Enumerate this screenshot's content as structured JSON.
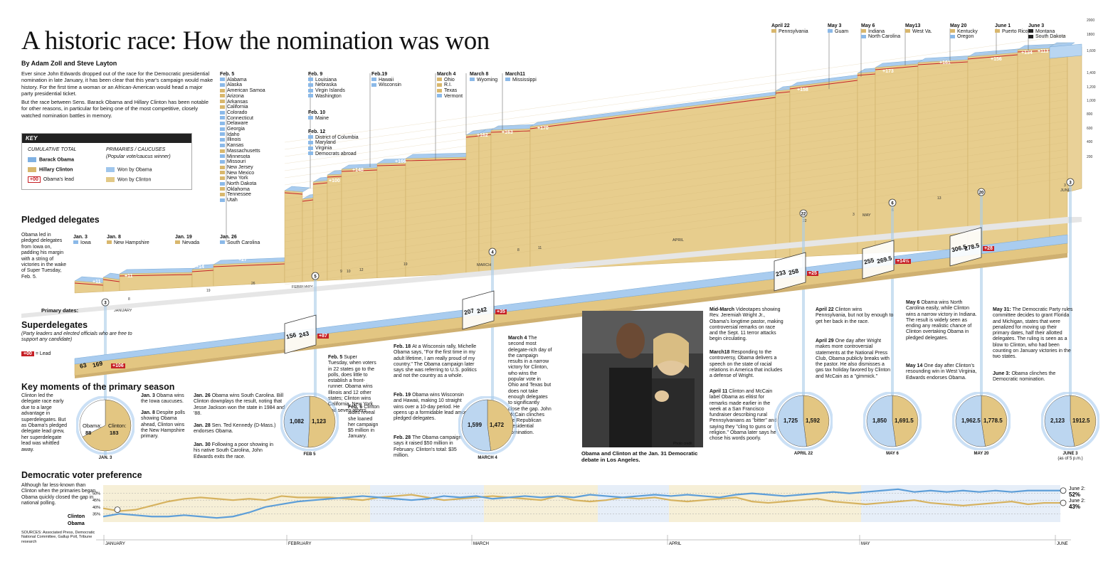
{
  "header": {
    "title": "A historic race: How the nomination was won",
    "byline": "By Adam Zoll and Steve Layton",
    "intro_p1": "Ever since John Edwards dropped out of the race for the Democratic presidential nomination in late January, it has been clear that this year's campaign would make history. For the first time a woman or an African-American would head a major party presidential ticket.",
    "intro_p2": "But the race between Sens. Barack Obama and Hillary Clinton has been notable for other reasons, in particular for being one of the most competitive, closely watched nomination battles in memory."
  },
  "key": {
    "title": "KEY",
    "cum_total": "CUMULATIVE TOTAL",
    "obama": "Barack Obama",
    "clinton": "Hillary Clinton",
    "lead_box": "+00",
    "lead_label": "Obama's lead",
    "primaries": "PRIMARIES / CAUCUSES",
    "popular": "(Popular vote/caucus winner)",
    "won_obama": "Won by Obama",
    "won_clinton": "Won by Clinton"
  },
  "sections": {
    "pledged": "Pledged delegates",
    "super": "Superdelegates",
    "super_sub": "(Party leaders and elected officials who are free to support any candidate)",
    "super_lead_box": "+00",
    "super_lead": "= Lead",
    "primary_dates": "Primary dates:",
    "key_moments": "Key moments of the primary season",
    "voter_pref": "Democratic voter preference",
    "pledged_note": "Obama led in pledged delegates from Iowa on, padding his margin with a string of victories in the wake of Super Tuesday, Feb. 5.",
    "km_note": "Clinton led the delegate race early due to a large advantage in superdelegates. But as Obama's pledged delegate lead grew, her superdelegate lead was whittled away.",
    "vp_note": "Although far less-known than Clinton when the primaries began, Obama quickly closed the gap in national polling.",
    "sources": "SOURCES: Associated Press, Democratic National Committee, Gallup Poll, Tribune research"
  },
  "primary_dates": [
    {
      "date": "Jan. 3",
      "states": [
        {
          "n": "Iowa",
          "w": "o"
        }
      ]
    },
    {
      "date": "Jan. 8",
      "states": [
        {
          "n": "New Hampshire",
          "w": "c"
        }
      ]
    },
    {
      "date": "Jan. 19",
      "states": [
        {
          "n": "Nevada",
          "w": "c"
        }
      ]
    },
    {
      "date": "Jan. 26",
      "states": [
        {
          "n": "South Carolina",
          "w": "o"
        }
      ]
    },
    {
      "date": "Feb. 5",
      "states": [
        {
          "n": "Alabama",
          "w": "o"
        },
        {
          "n": "Alaska",
          "w": "o"
        },
        {
          "n": "American Samoa",
          "w": "c"
        },
        {
          "n": "Arizona",
          "w": "c"
        },
        {
          "n": "Arkansas",
          "w": "c"
        },
        {
          "n": "California",
          "w": "c"
        },
        {
          "n": "Colorado",
          "w": "o"
        },
        {
          "n": "Connecticut",
          "w": "o"
        },
        {
          "n": "Delaware",
          "w": "o"
        },
        {
          "n": "Georgia",
          "w": "o"
        },
        {
          "n": "Idaho",
          "w": "o"
        },
        {
          "n": "Illinois",
          "w": "o"
        },
        {
          "n": "Kansas",
          "w": "o"
        },
        {
          "n": "Massachusetts",
          "w": "c"
        },
        {
          "n": "Minnesota",
          "w": "o"
        },
        {
          "n": "Missouri",
          "w": "o"
        },
        {
          "n": "New Jersey",
          "w": "c"
        },
        {
          "n": "New Mexico",
          "w": "c"
        },
        {
          "n": "New York",
          "w": "c"
        },
        {
          "n": "North Dakota",
          "w": "o"
        },
        {
          "n": "Oklahoma",
          "w": "c"
        },
        {
          "n": "Tennessee",
          "w": "c"
        },
        {
          "n": "Utah",
          "w": "o"
        }
      ]
    },
    {
      "date": "Feb. 9",
      "states": [
        {
          "n": "Louisiana",
          "w": "o"
        },
        {
          "n": "Nebraska",
          "w": "o"
        },
        {
          "n": "Virgin Islands",
          "w": "o"
        },
        {
          "n": "Washington",
          "w": "o"
        }
      ]
    },
    {
      "date": "Feb. 10",
      "states": [
        {
          "n": "Maine",
          "w": "o"
        }
      ]
    },
    {
      "date": "Feb. 12",
      "states": [
        {
          "n": "District of Columbia",
          "w": "o"
        },
        {
          "n": "Maryland",
          "w": "o"
        },
        {
          "n": "Virginia",
          "w": "o"
        },
        {
          "n": "Democrats abroad",
          "w": "o"
        }
      ]
    },
    {
      "date": "Feb.19",
      "states": [
        {
          "n": "Hawaii",
          "w": "o"
        },
        {
          "n": "Wisconsin",
          "w": "o"
        }
      ]
    },
    {
      "date": "March 4",
      "states": [
        {
          "n": "Ohio",
          "w": "c"
        },
        {
          "n": "R.I.",
          "w": "c"
        },
        {
          "n": "Texas",
          "w": "c"
        },
        {
          "n": "Vermont",
          "w": "o"
        }
      ]
    },
    {
      "date": "March 8",
      "states": [
        {
          "n": "Wyoming",
          "w": "o"
        }
      ]
    },
    {
      "date": "March11",
      "states": [
        {
          "n": "Mississippi",
          "w": "o"
        }
      ]
    },
    {
      "date": "April 22",
      "states": [
        {
          "n": "Pennsylvania",
          "w": "c"
        }
      ]
    },
    {
      "date": "May 3",
      "states": [
        {
          "n": "Guam",
          "w": "o"
        }
      ]
    },
    {
      "date": "May 6",
      "states": [
        {
          "n": "Indiana",
          "w": "c"
        },
        {
          "n": "North Carolina",
          "w": "o"
        }
      ]
    },
    {
      "date": "May13",
      "states": [
        {
          "n": "West Va.",
          "w": "c"
        }
      ]
    },
    {
      "date": "May 20",
      "states": [
        {
          "n": "Kentucky",
          "w": "c"
        },
        {
          "n": "Oregon",
          "w": "o"
        }
      ]
    },
    {
      "date": "June 1",
      "states": [
        {
          "n": "Puerto Rico",
          "w": "c"
        }
      ]
    },
    {
      "date": "June 3",
      "states": [
        {
          "n": "Montana",
          "w": "n"
        },
        {
          "n": "South Dakota",
          "w": "n"
        }
      ]
    }
  ],
  "pledged_leads": [
    "+11",
    "+11",
    "+14",
    "+27",
    "+46",
    "+100",
    "+148",
    "+166",
    "+162",
    "+163",
    "+170",
    "+158",
    "+173",
    "+161",
    "+156",
    "+134",
    "+113"
  ],
  "pledged_scale": [
    "2000",
    "1800",
    "1,600",
    "1,400",
    "1,200",
    "1,000",
    "800",
    "600",
    "400",
    "200"
  ],
  "month_labels": [
    "JANUARY",
    "FEBRUARY",
    "MARCH",
    "APRIL",
    "MAY",
    "JUNE"
  ],
  "super_points": [
    {
      "o": "63",
      "c": "169",
      "lead": "+106"
    },
    {
      "o": "156",
      "c": "243",
      "lead": "+87"
    },
    {
      "o": "207",
      "c": "242",
      "lead": "+35"
    },
    {
      "o": "233",
      "c": "258",
      "lead": "+25"
    },
    {
      "o": "255",
      "c": "269.5",
      "lead": "+14½"
    },
    {
      "o": "306.5",
      "c": "278.5",
      "lead": "+28"
    }
  ],
  "pies": [
    {
      "o": 88,
      "c": 183,
      "ol": "Obama:",
      "oval": "88",
      "cl": "Clinton:",
      "cval": "183",
      "date": "JAN. 3"
    },
    {
      "o": 1082,
      "c": 1123,
      "oval": "1,082",
      "cval": "1,123",
      "date": "FEB 5"
    },
    {
      "o": 1599,
      "c": 1472,
      "oval": "1,599",
      "cval": "1,472",
      "date": "MARCH 4"
    },
    {
      "o": 1725,
      "c": 1592,
      "oval": "1,725",
      "cval": "1,592",
      "date": "APRIL 22"
    },
    {
      "o": 1850,
      "c": 1691.5,
      "oval": "1,850",
      "cval": "1,691.5",
      "date": "MAY 6"
    },
    {
      "o": 1962.5,
      "c": 1778.5,
      "oval": "1,962.5",
      "cval": "1,778.5",
      "date": "MAY 20"
    },
    {
      "o": 2123,
      "c": 1912.5,
      "oval": "2,123",
      "cval": "1912.5",
      "date": "JUNE 3",
      "sub": "(as of 5 p.m.)"
    }
  ],
  "events": [
    {
      "h": "Jan. 3",
      "t": "Obama wins the Iowa caucuses."
    },
    {
      "h": "Jan. 8",
      "t": "Despite polls showing Obama ahead, Clinton wins the New Hampshire primary."
    },
    {
      "h": "Jan. 26",
      "t": "Obama wins South Carolina. Bill Clinton downplays the result, noting that Jesse Jackson won the state in 1984 and '88."
    },
    {
      "h": "Jan. 28",
      "t": "Sen. Ted Kennedy (D-Mass.) endorses Obama."
    },
    {
      "h": "Jan. 30",
      "t": "Following a poor showing in his native South Carolina, John Edwards exits the race."
    },
    {
      "h": "Feb. 5",
      "t": "Super Tuesday, when voters in 22 states go to the polls, does little to establish a front-runner. Obama wins Illinois and 12 other states; Clinton wins California, New York and seven others."
    },
    {
      "h": "Feb. 6",
      "t": "Clinton aides reveal she loaned her campaign $5 million in January."
    },
    {
      "h": "Feb. 18",
      "t": "At a Wisconsin rally, Michelle Obama says, \"For the first time in my adult lifetime, I am really proud of my country.\" The Obama campaign later says she was referring to U.S. politics and not the country as a whole."
    },
    {
      "h": "Feb. 19",
      "t": "Obama wins Wisconsin and Hawaii, making 10 straight wins over a 10-day period. He opens up a formidable lead among pledged delegates."
    },
    {
      "h": "Feb. 28",
      "t": "The Obama campaign says it raised $50 million in February. Clinton's total: $35 million."
    },
    {
      "h": "March 4",
      "t": "The second most delegate-rich day of the campaign results in a narrow victory for Clinton, who wins the popular vote in Ohio and Texas but does not take enough delegates to significantly close the gap. John McCain clinches the Republican presidential nomination."
    },
    {
      "h": "Mid-March",
      "t": "Videotapes showing Rev. Jeremiah Wright Jr., Obama's longtime pastor, making controversial remarks on race and the Sept. 11 terror attacks begin circulating."
    },
    {
      "h": "March18",
      "t": "Responding to the controversy, Obama delivers a speech on the state of racial relations in America that includes a defense of Wright."
    },
    {
      "h": "April 11",
      "t": "Clinton and McCain label Obama as elitist for remarks made earlier in the week at a San Francisco fundraiser describing rural Pennsylvanians as \"bitter\" and saying they \"cling to guns or religion.\" Obama later says he chose his words poorly."
    },
    {
      "h": "April 22",
      "t": "Clinton wins Pennsylvania, but not by enough to get her back in the race."
    },
    {
      "h": "April 29",
      "t": "One day after Wright makes more controversial statements at the National Press Club, Obama publicly breaks with the pastor. He also dismisses a gas tax holiday favored by Clinton and McCain as a \"gimmick.\""
    },
    {
      "h": "May 6",
      "t": "Obama wins North Carolina easily, while Clinton wins a narrow victory in Indiana. The result is widely seen as ending any realistic chance of Clinton overtaking Obama in pledged delegates."
    },
    {
      "h": "May 14",
      "t": "One day after Clinton's resounding win in West Virginia, Edwards endorses Obama."
    },
    {
      "h": "May 31:",
      "t": "The Democratic Party rules committee decides to grant Florida and Michigan, states that were penalized for moving up their primary dates, half their allotted delegates. The ruling is seen as a blow to Clinton, who had been counting on January victories in the two states."
    },
    {
      "h": "June 3:",
      "t": "Obama clinches the Democratic nomination."
    }
  ],
  "photo": {
    "caption": "Obama and Clinton at the Jan. 31 Democratic debate in Los Angeles.",
    "credit": "Photo credit"
  },
  "markers": [
    "3",
    "5",
    "4",
    "22",
    "6",
    "20",
    "3"
  ],
  "axis_days": [
    "8",
    "19",
    "26",
    "9",
    "10",
    "12",
    "19",
    "4",
    "8",
    "11",
    "22",
    "3",
    "6",
    "13",
    "20",
    "3"
  ],
  "chart_data": {
    "type": "line",
    "title": "Democratic voter preference",
    "ylabel": "",
    "y_ticks": [
      "50%",
      "45%",
      "40%",
      "35%"
    ],
    "ylim": [
      30,
      55
    ],
    "months": [
      "JANUARY",
      "FEBRUARY",
      "MARCH",
      "APRIL",
      "MAY",
      "JUNE"
    ],
    "series": [
      {
        "name": "Clinton",
        "end_label": "June 2:",
        "end_value": "43%",
        "color": "#d6b25f",
        "values": [
          39,
          37,
          38,
          41,
          44,
          46,
          47,
          46,
          45,
          46,
          45,
          48,
          47,
          47,
          47,
          46,
          45,
          47,
          48,
          49,
          47,
          45,
          46,
          47,
          48,
          47,
          46,
          45,
          48,
          45,
          44,
          45,
          47,
          46,
          47,
          45,
          44,
          45,
          46,
          47,
          44,
          43,
          44,
          45,
          46,
          44,
          43,
          42,
          43,
          44,
          45,
          43,
          42,
          41,
          42,
          43,
          44,
          42,
          43,
          43
        ]
      },
      {
        "name": "Obama",
        "end_label": "June 2:",
        "end_value": "52%",
        "color": "#5d9ed8",
        "values": [
          33,
          35,
          34,
          33,
          33,
          34,
          33,
          32,
          33,
          36,
          40,
          42,
          44,
          45,
          46,
          47,
          48,
          47,
          46,
          45,
          46,
          48,
          47,
          48,
          46,
          47,
          48,
          47,
          48,
          47,
          49,
          48,
          47,
          48,
          49,
          48,
          49,
          48,
          47,
          49,
          50,
          49,
          48,
          49,
          50,
          51,
          50,
          51,
          52,
          53,
          51,
          52,
          51,
          52,
          51,
          52,
          51,
          52,
          52,
          52
        ]
      }
    ]
  }
}
